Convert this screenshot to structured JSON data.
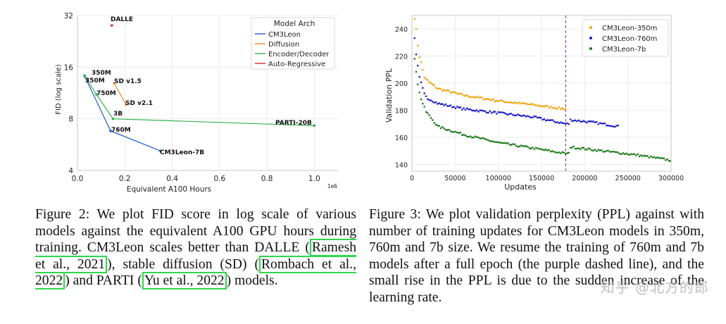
{
  "figure2": {
    "chart_data": {
      "type": "line",
      "x_scale": "linear",
      "y_scale": "log",
      "xlabel": "Equivalent A100 Hours",
      "ylabel": "FID (log scale)",
      "x_multiplier": "1e6",
      "xlim": [
        0,
        1.1
      ],
      "ylim": [
        4,
        32
      ],
      "x_ticks": [
        0.0,
        0.2,
        0.4,
        0.6,
        0.8,
        1.0
      ],
      "x_tick_labels": [
        "0.0",
        "0.2",
        "0.4",
        "0.6",
        "0.8",
        "1.0"
      ],
      "y_ticks": [
        4,
        8,
        16,
        32
      ],
      "y_tick_labels": [
        "4",
        "8",
        "16",
        "32"
      ],
      "legend_title": "Model Arch",
      "legend_position": "top-right",
      "series": [
        {
          "name": "CM3Leon",
          "color": "#1f5fbf",
          "points": [
            [
              0.03,
              14.2
            ],
            [
              0.14,
              6.8
            ],
            [
              0.35,
              5.2
            ]
          ],
          "labels": [
            "350M",
            "760M",
            "CM3Leon-7B"
          ]
        },
        {
          "name": "Diffusion",
          "color": "#f08a24",
          "points": [
            [
              0.155,
              12.9
            ],
            [
              0.205,
              9.7
            ]
          ],
          "labels": [
            "SD v1.5",
            "SD v2.1"
          ]
        },
        {
          "name": "Encoder/Decoder",
          "color": "#33b24a",
          "points": [
            [
              0.03,
              14.3
            ],
            [
              0.08,
              11.1
            ],
            [
              0.15,
              8.0
            ],
            [
              1.0,
              7.3
            ]
          ],
          "labels": [
            "350M",
            "750M",
            "3B",
            "PARTI-20B"
          ]
        },
        {
          "name": "Auto-Regressive",
          "color": "#d62728",
          "points": [
            [
              0.145,
              28.0
            ]
          ],
          "labels": [
            "DALLE"
          ]
        }
      ]
    },
    "caption": {
      "lead": "Figure 2:  We plot FID score in log scale of various models against the equivalent A100 GPU hours during training.  CM3Leon scales better than DALLE (",
      "cite1": "Ramesh et al., 2021",
      "mid1": "), stable diffusion (SD) (",
      "cite2": "Rombach et al., 2022",
      "mid2": ") and PARTI (",
      "cite3": "Yu et al., 2022",
      "tail": ") models."
    }
  },
  "figure3": {
    "chart_data": {
      "type": "scatter",
      "xlabel": "Updates",
      "ylabel": "Validation PPL",
      "xlim": [
        0,
        300000
      ],
      "ylim": [
        135,
        250
      ],
      "x_ticks": [
        0,
        50000,
        100000,
        150000,
        200000,
        250000,
        300000
      ],
      "x_tick_labels": [
        "0",
        "50000",
        "100000",
        "150000",
        "200000",
        "250000",
        "300000"
      ],
      "y_ticks": [
        140,
        160,
        180,
        200,
        220,
        240
      ],
      "y_tick_labels": [
        "140",
        "160",
        "180",
        "200",
        "220",
        "240"
      ],
      "vline_x": 178000,
      "vline_color": "#8b1a8b",
      "legend_position": "top-right",
      "series": [
        {
          "name": "CM3Leon-350m",
          "color": "#f0a30a",
          "knots": [
            [
              3000,
              249
            ],
            [
              8000,
              222
            ],
            [
              15000,
              203
            ],
            [
              30000,
              196
            ],
            [
              60000,
              191
            ],
            [
              100000,
              187
            ],
            [
              140000,
              184
            ],
            [
              178000,
              181
            ]
          ]
        },
        {
          "name": "CM3Leon-760m",
          "color": "#1a1ac8",
          "knots": [
            [
              3000,
              233
            ],
            [
              8000,
              205
            ],
            [
              15000,
              190
            ],
            [
              30000,
              185
            ],
            [
              60000,
              181
            ],
            [
              100000,
              178
            ],
            [
              140000,
              175
            ],
            [
              178000,
              170
            ],
            [
              182000,
              173
            ],
            [
              210000,
              171
            ],
            [
              240000,
              168
            ]
          ]
        },
        {
          "name": "CM3Leon-7b",
          "color": "#1a7a1a",
          "knots": [
            [
              3000,
              219
            ],
            [
              8000,
              194
            ],
            [
              15000,
              180
            ],
            [
              30000,
              168
            ],
            [
              60000,
              162
            ],
            [
              100000,
              156
            ],
            [
              140000,
              152
            ],
            [
              178000,
              148
            ],
            [
              182000,
              153
            ],
            [
              220000,
              150
            ],
            [
              260000,
              147
            ],
            [
              300000,
              143
            ]
          ]
        }
      ]
    },
    "caption": {
      "text": "Figure 3: We plot validation perplexity (PPL) against with number of training updates for CM3Leon models in 350m, 760m and 7b size.  We resume the training of 760m and 7b models after a full epoch (the purple dashed line), and the small rise in the PPL is due to the sudden increase of the learning rate."
    }
  },
  "watermark": "知乎 @北方的郎"
}
